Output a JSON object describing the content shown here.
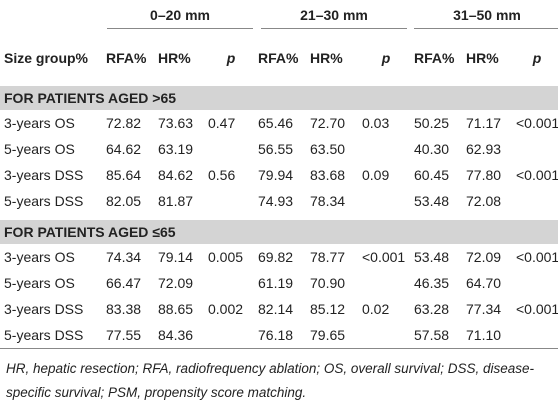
{
  "table": {
    "column_groups": [
      "0–20 mm",
      "21–30 mm",
      "31–50 mm"
    ],
    "column_headers": [
      "Size group%",
      "RFA%",
      "HR%",
      "p",
      "RFA%",
      "HR%",
      "p",
      "RFA%",
      "HR%",
      "p"
    ],
    "sections": [
      {
        "title": "FOR PATIENTS AGED >65",
        "rows": [
          [
            "3-years OS",
            "72.82",
            "73.63",
            "0.47",
            "65.46",
            "72.70",
            "0.03",
            "50.25",
            "71.17",
            "<0.001"
          ],
          [
            "5-years OS",
            "64.62",
            "63.19",
            null,
            "56.55",
            "63.50",
            null,
            "40.30",
            "62.93",
            null
          ],
          [
            "3-years DSS",
            "85.64",
            "84.62",
            "0.56",
            "79.94",
            "83.68",
            "0.09",
            "60.45",
            "77.80",
            "<0.001"
          ],
          [
            "5-years DSS",
            "82.05",
            "81.87",
            null,
            "74.93",
            "78.34",
            null,
            "53.48",
            "72.08",
            null
          ]
        ]
      },
      {
        "title": "FOR PATIENTS AGED ≤65",
        "rows": [
          [
            "3-years OS",
            "74.34",
            "79.14",
            "0.005",
            "69.82",
            "78.77",
            "<0.001",
            "53.48",
            "72.09",
            "<0.001"
          ],
          [
            "5-years OS",
            "66.47",
            "72.09",
            null,
            "61.19",
            "70.90",
            null,
            "46.35",
            "64.70",
            null
          ],
          [
            "3-years DSS",
            "83.38",
            "88.65",
            "0.002",
            "82.14",
            "85.12",
            "0.02",
            "63.28",
            "77.34",
            "<0.001"
          ],
          [
            "5-years DSS",
            "77.55",
            "84.36",
            null,
            "76.18",
            "79.65",
            null,
            "57.58",
            "71.10",
            null
          ]
        ]
      }
    ],
    "footnote": "HR, hepatic resection; RFA, radiofrequency ablation; OS, overall survival; DSS, disease-specific survival; PSM, propensity score matching."
  }
}
